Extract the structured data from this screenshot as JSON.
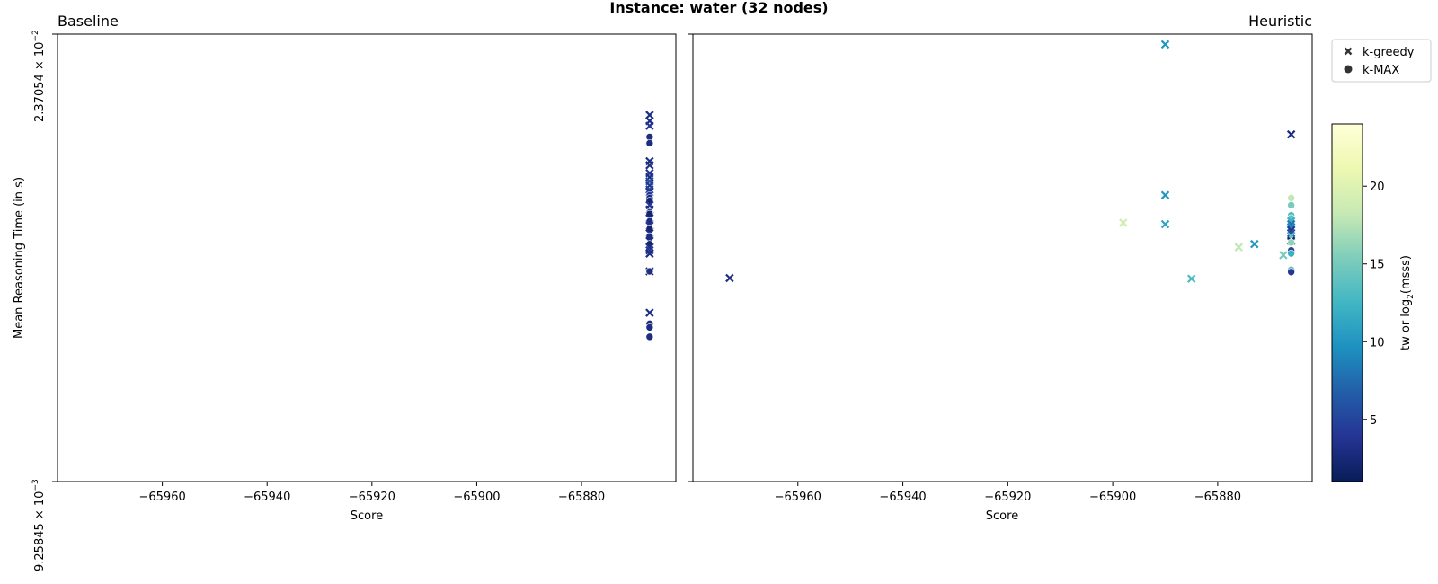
{
  "figure": {
    "title": "Instance: water (32 nodes)"
  },
  "legend": {
    "items": [
      {
        "label": "k-greedy",
        "marker": "x"
      },
      {
        "label": "k-MAX",
        "marker": "o"
      }
    ]
  },
  "colorbar": {
    "label_main": "tw or log",
    "label_sub": "2",
    "label_tail": "(msss)",
    "range": [
      1,
      24
    ],
    "ticks": [
      5,
      10,
      15,
      20
    ],
    "colormap": [
      "#081d58",
      "#253494",
      "#225ea8",
      "#1d91c0",
      "#41b6c4",
      "#7fcdbb",
      "#c7e9b4",
      "#edf8b1",
      "#ffffd9"
    ]
  },
  "chart_data": [
    {
      "type": "scatter",
      "title": "Baseline",
      "xlabel": "Score",
      "ylabel": "Mean Reasoning Time (in s)",
      "xlim": [
        -65980,
        -65862
      ],
      "xticks": [
        -65960,
        -65940,
        -65920,
        -65900,
        -65880
      ],
      "xtick_labels": [
        "−65960",
        "−65940",
        "−65920",
        "−65900",
        "−65880"
      ],
      "yscale": "log",
      "ylim": [
        0.00925845,
        0.0237054
      ],
      "ytick_labels": {
        "bottom": {
          "mantissa": "9.25845 × 10",
          "exp": "−3"
        },
        "top": {
          "mantissa": "2.37054 × 10",
          "exp": "−2"
        }
      },
      "points": [
        {
          "x": -65867,
          "y": 0.02,
          "marker": "x",
          "c": 3
        },
        {
          "x": -65867,
          "y": 0.01975,
          "marker": "x",
          "c": 3
        },
        {
          "x": -65867,
          "y": 0.01955,
          "marker": "x",
          "c": 4
        },
        {
          "x": -65867,
          "y": 0.0191,
          "marker": "o",
          "c": 3
        },
        {
          "x": -65867,
          "y": 0.01885,
          "marker": "o",
          "c": 3
        },
        {
          "x": -65867,
          "y": 0.01815,
          "marker": "x",
          "c": 3
        },
        {
          "x": -65867,
          "y": 0.018,
          "marker": "x",
          "c": 3
        },
        {
          "x": -65867,
          "y": 0.0177,
          "marker": "x",
          "c": 4
        },
        {
          "x": -65867,
          "y": 0.01755,
          "marker": "x",
          "c": 3
        },
        {
          "x": -65867,
          "y": 0.0174,
          "marker": "x",
          "c": 6
        },
        {
          "x": -65867,
          "y": 0.01725,
          "marker": "x",
          "c": 4
        },
        {
          "x": -65867,
          "y": 0.0171,
          "marker": "x",
          "c": 5
        },
        {
          "x": -65867,
          "y": 0.017,
          "marker": "x",
          "c": 3
        },
        {
          "x": -65867,
          "y": 0.0169,
          "marker": "o",
          "c": 4
        },
        {
          "x": -65867,
          "y": 0.0168,
          "marker": "o",
          "c": 3
        },
        {
          "x": -65867,
          "y": 0.0167,
          "marker": "o",
          "c": 2
        },
        {
          "x": -65867,
          "y": 0.01655,
          "marker": "x",
          "c": 4
        },
        {
          "x": -65867,
          "y": 0.0164,
          "marker": "x",
          "c": 3
        },
        {
          "x": -65867,
          "y": 0.0163,
          "marker": "o",
          "c": 3
        },
        {
          "x": -65867,
          "y": 0.01625,
          "marker": "o",
          "c": 2
        },
        {
          "x": -65867,
          "y": 0.0161,
          "marker": "x",
          "c": 3
        },
        {
          "x": -65867,
          "y": 0.016,
          "marker": "o",
          "c": 3
        },
        {
          "x": -65867,
          "y": 0.01585,
          "marker": "x",
          "c": 4
        },
        {
          "x": -65867,
          "y": 0.01575,
          "marker": "o",
          "c": 2
        },
        {
          "x": -65867,
          "y": 0.0156,
          "marker": "x",
          "c": 3
        },
        {
          "x": -65867,
          "y": 0.0155,
          "marker": "o",
          "c": 3
        },
        {
          "x": -65867,
          "y": 0.01535,
          "marker": "x",
          "c": 3
        },
        {
          "x": -65867,
          "y": 0.01525,
          "marker": "o",
          "c": 2
        },
        {
          "x": -65867,
          "y": 0.01515,
          "marker": "x",
          "c": 3
        },
        {
          "x": -65867,
          "y": 0.01505,
          "marker": "x",
          "c": 4
        },
        {
          "x": -65867,
          "y": 0.01495,
          "marker": "x",
          "c": 3
        },
        {
          "x": -65867,
          "y": 0.0144,
          "marker": "x",
          "c": 3
        },
        {
          "x": -65867,
          "y": 0.0144,
          "marker": "o",
          "c": 3
        },
        {
          "x": -65867,
          "y": 0.0132,
          "marker": "x",
          "c": 3
        },
        {
          "x": -65867,
          "y": 0.0129,
          "marker": "o",
          "c": 3
        },
        {
          "x": -65867,
          "y": 0.0128,
          "marker": "o",
          "c": 3
        },
        {
          "x": -65867,
          "y": 0.01255,
          "marker": "o",
          "c": 3
        }
      ]
    },
    {
      "type": "scatter",
      "title": "Heuristic",
      "xlabel": "Score",
      "xlim": [
        -65980,
        -65862
      ],
      "xticks": [
        -65960,
        -65940,
        -65920,
        -65900,
        -65880
      ],
      "xtick_labels": [
        "−65960",
        "−65940",
        "−65920",
        "−65900",
        "−65880"
      ],
      "yscale": "log",
      "ylim": [
        0.00925845,
        0.0237054
      ],
      "sharey": true,
      "points": [
        {
          "x": -65890,
          "y": 0.0232,
          "marker": "x",
          "c": 10
        },
        {
          "x": -65866,
          "y": 0.0192,
          "marker": "x",
          "c": 3
        },
        {
          "x": -65890,
          "y": 0.0169,
          "marker": "x",
          "c": 10
        },
        {
          "x": -65866,
          "y": 0.0168,
          "marker": "o",
          "c": 18
        },
        {
          "x": -65866,
          "y": 0.01655,
          "marker": "o",
          "c": 15
        },
        {
          "x": -65866,
          "y": 0.0162,
          "marker": "o",
          "c": 13
        },
        {
          "x": -65866,
          "y": 0.0161,
          "marker": "o",
          "c": 14
        },
        {
          "x": -65866,
          "y": 0.016,
          "marker": "x",
          "c": 12
        },
        {
          "x": -65898,
          "y": 0.01595,
          "marker": "x",
          "c": 19
        },
        {
          "x": -65890,
          "y": 0.0159,
          "marker": "x",
          "c": 11
        },
        {
          "x": -65866,
          "y": 0.0159,
          "marker": "x",
          "c": 8
        },
        {
          "x": -65866,
          "y": 0.0158,
          "marker": "x",
          "c": 9
        },
        {
          "x": -65866,
          "y": 0.0157,
          "marker": "x",
          "c": 4
        },
        {
          "x": -65866,
          "y": 0.0156,
          "marker": "x",
          "c": 6
        },
        {
          "x": -65866,
          "y": 0.0155,
          "marker": "x",
          "c": 14
        },
        {
          "x": -65866,
          "y": 0.01535,
          "marker": "x",
          "c": 2
        },
        {
          "x": -65866,
          "y": 0.0153,
          "marker": "o",
          "c": 16
        },
        {
          "x": -65873,
          "y": 0.01525,
          "marker": "x",
          "c": 10
        },
        {
          "x": -65876,
          "y": 0.01515,
          "marker": "x",
          "c": 18
        },
        {
          "x": -65866,
          "y": 0.01505,
          "marker": "o",
          "c": 5
        },
        {
          "x": -65866,
          "y": 0.01495,
          "marker": "o",
          "c": 12
        },
        {
          "x": -65867.5,
          "y": 0.0149,
          "marker": "x",
          "c": 15
        },
        {
          "x": -65866,
          "y": 0.01445,
          "marker": "o",
          "c": 14
        },
        {
          "x": -65866,
          "y": 0.01438,
          "marker": "o",
          "c": 4
        },
        {
          "x": -65973,
          "y": 0.0142,
          "marker": "x",
          "c": 3
        },
        {
          "x": -65885,
          "y": 0.01418,
          "marker": "x",
          "c": 13
        }
      ]
    }
  ]
}
